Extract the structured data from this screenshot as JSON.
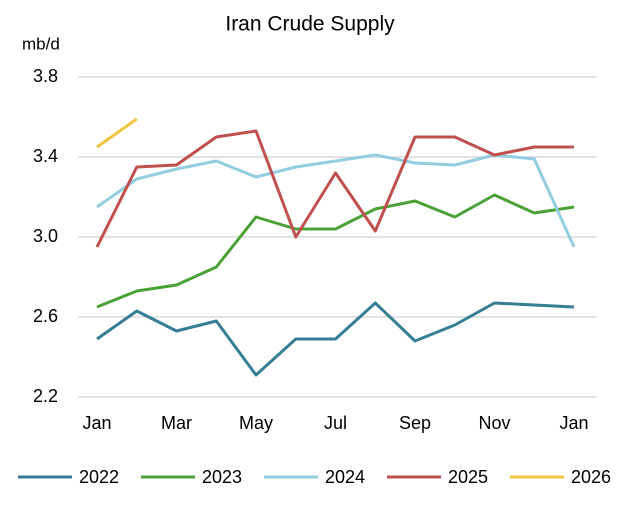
{
  "chart_data": {
    "type": "line",
    "title": "Iran Crude Supply",
    "y_label": "mb/d",
    "categories": [
      "Jan",
      null,
      "Mar",
      null,
      "May",
      null,
      "Jul",
      null,
      "Sep",
      null,
      "Nov",
      null,
      "Jan"
    ],
    "series": [
      {
        "name": "2022",
        "color": "#367e93",
        "values": [
          2.49,
          2.63,
          2.53,
          2.58,
          2.31,
          2.49,
          2.49,
          2.67,
          2.48,
          2.56,
          2.67,
          2.66,
          2.65
        ]
      },
      {
        "name": "2023",
        "color": "#4aa136",
        "values": [
          2.65,
          2.73,
          2.76,
          2.85,
          3.1,
          3.04,
          3.04,
          3.14,
          3.18,
          3.1,
          3.21,
          3.12,
          3.15
        ]
      },
      {
        "name": "2024",
        "color": "#93cde0",
        "values": [
          3.15,
          3.29,
          3.34,
          3.38,
          3.3,
          3.35,
          3.38,
          3.41,
          3.37,
          3.36,
          3.41,
          3.39,
          2.95
        ]
      },
      {
        "name": "2025",
        "color": "#c0504d",
        "values": [
          2.95,
          3.35,
          3.36,
          3.5,
          3.53,
          3.0,
          3.32,
          3.03,
          3.5,
          3.5,
          3.41,
          3.45,
          3.45
        ]
      },
      {
        "name": "2026",
        "color": "#f3c342",
        "values": [
          3.45,
          3.59,
          null,
          null,
          null,
          null,
          null,
          null,
          null,
          null,
          null,
          null,
          null
        ]
      }
    ],
    "ylim": [
      2.2,
      3.8
    ],
    "yticks": [
      2.2,
      2.6,
      {
        "value": 3,
        "label": "3.0"
      },
      3.4,
      3.8
    ],
    "grid": true,
    "legend": "bottom"
  }
}
